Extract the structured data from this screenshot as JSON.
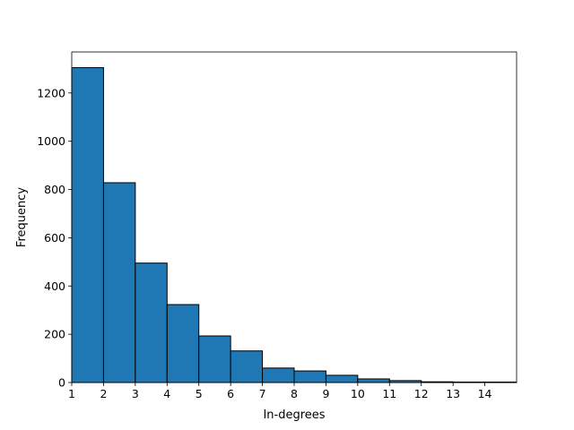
{
  "chart_data": {
    "type": "bar",
    "bins": [
      {
        "x0": 1,
        "x1": 2,
        "value": 1305
      },
      {
        "x0": 2,
        "x1": 3,
        "value": 828
      },
      {
        "x0": 3,
        "x1": 4,
        "value": 495
      },
      {
        "x0": 4,
        "x1": 5,
        "value": 323
      },
      {
        "x0": 5,
        "x1": 6,
        "value": 193
      },
      {
        "x0": 6,
        "x1": 7,
        "value": 131
      },
      {
        "x0": 7,
        "x1": 8,
        "value": 60
      },
      {
        "x0": 8,
        "x1": 9,
        "value": 48
      },
      {
        "x0": 9,
        "x1": 10,
        "value": 30
      },
      {
        "x0": 10,
        "x1": 11,
        "value": 15
      },
      {
        "x0": 11,
        "x1": 12,
        "value": 8
      },
      {
        "x0": 12,
        "x1": 13,
        "value": 3
      },
      {
        "x0": 13,
        "x1": 14,
        "value": 2
      },
      {
        "x0": 14,
        "x1": 15,
        "value": 2
      }
    ],
    "xlabel": "In-degrees",
    "ylabel": "Frequency",
    "xlim": [
      1,
      15
    ],
    "ylim": [
      0,
      1370
    ],
    "xticks": [
      1,
      2,
      3,
      4,
      5,
      6,
      7,
      8,
      9,
      10,
      11,
      12,
      13,
      14
    ],
    "yticks": [
      0,
      200,
      400,
      600,
      800,
      1000,
      1200
    ],
    "bar_color": "#1f77b4",
    "edge_color": "#000000",
    "grid": false
  }
}
